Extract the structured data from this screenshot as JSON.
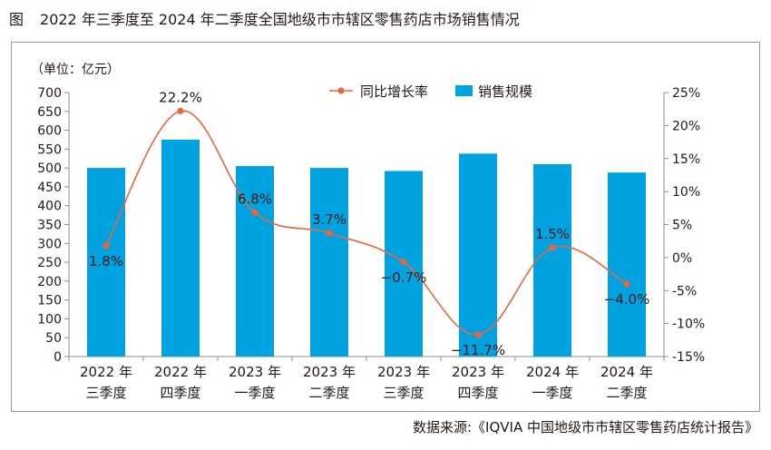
{
  "title": {
    "figure_label": "图",
    "text": "2022 年三季度至 2024 年二季度全国地级市市辖区零售药店市场销售情况"
  },
  "source": "数据来源:《IQVIA 中国地级市市辖区零售药店统计报告》",
  "colors": {
    "bar": "#00A3E0",
    "line": "#E8663D",
    "axis": "#8c8c8c",
    "text": "#231815"
  },
  "chart_data": {
    "type": "bar",
    "unit_label": "（单位：亿元）",
    "categories": [
      [
        "2022 年",
        "三季度"
      ],
      [
        "2022 年",
        "四季度"
      ],
      [
        "2023 年",
        "一季度"
      ],
      [
        "2023 年",
        "二季度"
      ],
      [
        "2023 年",
        "三季度"
      ],
      [
        "2023 年",
        "四季度"
      ],
      [
        "2024 年",
        "一季度"
      ],
      [
        "2024 年",
        "二季度"
      ]
    ],
    "y_left": {
      "min": 0,
      "max": 700,
      "step": 50
    },
    "y_right": {
      "min": -15,
      "max": 25,
      "step": 5,
      "suffix": "%"
    },
    "series": [
      {
        "name": "销售规模",
        "type": "bar",
        "axis": "left",
        "values": [
          500,
          575,
          505,
          500,
          492,
          538,
          510,
          488
        ]
      },
      {
        "name": "同比增长率",
        "type": "line",
        "axis": "right",
        "values": [
          1.8,
          22.2,
          6.8,
          3.7,
          -0.7,
          -11.7,
          1.5,
          -4.0
        ],
        "labels": [
          "1.8%",
          "22.2%",
          "6.8%",
          "3.7%",
          "−0.7%",
          "−11.7%",
          "1.5%",
          "−4.0%"
        ]
      }
    ],
    "legend": {
      "placement": "top-center",
      "items": [
        "同比增长率",
        "销售规模"
      ]
    },
    "grid": false
  }
}
